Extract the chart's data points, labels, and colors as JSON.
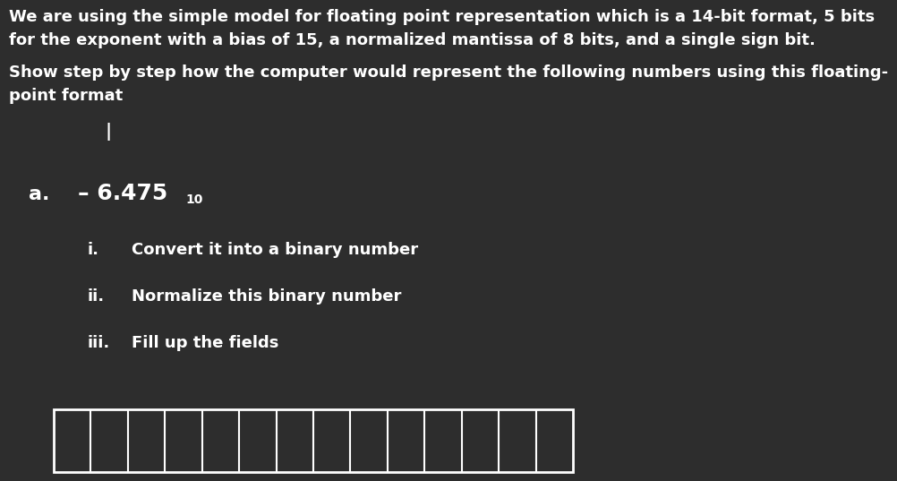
{
  "background_color": "#2d2d2d",
  "text_color": "#ffffff",
  "title_line1": "We are using the simple model for floating point representation which is a 14-bit format, 5 bits",
  "title_line2": "for the exponent with a bias of 15, a normalized mantissa of 8 bits, and a single sign bit.",
  "subtitle_line1": "Show step by step how the computer would represent the following numbers using this floating-",
  "subtitle_line2": "point format",
  "cursor_char": "|",
  "part_label": "a.",
  "part_value": "– 6.475",
  "part_subscript": "10",
  "steps": [
    {
      "roman": "i.",
      "text": "Convert it into a binary number"
    },
    {
      "roman": "ii.",
      "text": "Normalize this binary number"
    },
    {
      "roman": "iii.",
      "text": "Fill up the fields"
    }
  ],
  "num_cells": 14,
  "font_size_body": 13,
  "font_size_part": 16,
  "font_size_steps": 13,
  "font_size_subscript": 10
}
